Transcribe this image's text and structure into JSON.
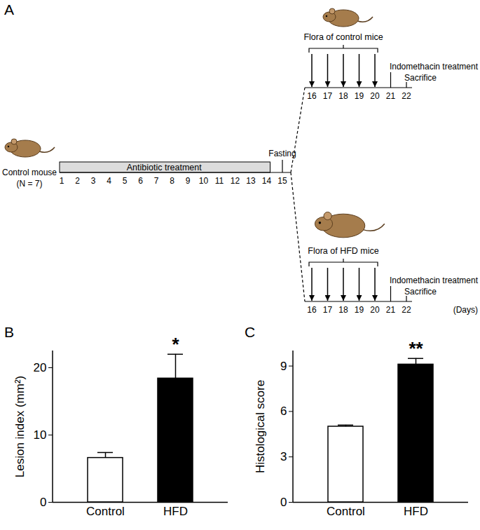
{
  "diagram": {
    "panel_label": "A",
    "subject": {
      "label": "Control mouse",
      "n": "(N = 7)"
    },
    "pretreatment": {
      "label": "Antibiotic treatment",
      "span": [
        1,
        14
      ],
      "days": [
        1,
        2,
        3,
        4,
        5,
        6,
        7,
        8,
        9,
        10,
        11,
        12,
        13,
        14,
        15
      ],
      "fasting": {
        "label": "Fasting",
        "day": 15
      }
    },
    "arms": [
      {
        "flora": "Flora of control mice",
        "gavage_days": [
          16,
          17,
          18,
          19,
          20
        ],
        "days": [
          16,
          17,
          18,
          19,
          20,
          21,
          22
        ],
        "indomethacin": {
          "label": "Indomethacin treatment",
          "day": 21
        },
        "sacrifice": {
          "label": "Sacrifice",
          "day": 22
        }
      },
      {
        "flora": "Flora of HFD mice",
        "gavage_days": [
          16,
          17,
          18,
          19,
          20
        ],
        "days": [
          16,
          17,
          18,
          19,
          20,
          21,
          22
        ],
        "indomethacin": {
          "label": "Indomethacin treatment",
          "day": 21
        },
        "sacrifice": {
          "label": "Sacrifice",
          "day": 22
        }
      }
    ],
    "days_label": "(Days)"
  },
  "chart_data": [
    {
      "type": "bar",
      "panel_label": "B",
      "y_label": "Lesion index (mm²)",
      "categories": [
        "Control",
        "HFD"
      ],
      "values": [
        6.6,
        18.4
      ],
      "errors": [
        0.8,
        3.6
      ],
      "significance": [
        null,
        "*"
      ],
      "colors": [
        "#ffffff",
        "#000000"
      ],
      "ylim": [
        0,
        22.5
      ],
      "yticks": [
        0,
        10,
        20
      ]
    },
    {
      "type": "bar",
      "panel_label": "C",
      "y_label": "Histological score",
      "categories": [
        "Control",
        "HFD"
      ],
      "values": [
        5.0,
        9.1
      ],
      "errors": [
        0.1,
        0.4
      ],
      "significance": [
        null,
        "**"
      ],
      "colors": [
        "#ffffff",
        "#000000"
      ],
      "ylim": [
        0,
        10
      ],
      "yticks": [
        0,
        3,
        6,
        9
      ]
    }
  ]
}
